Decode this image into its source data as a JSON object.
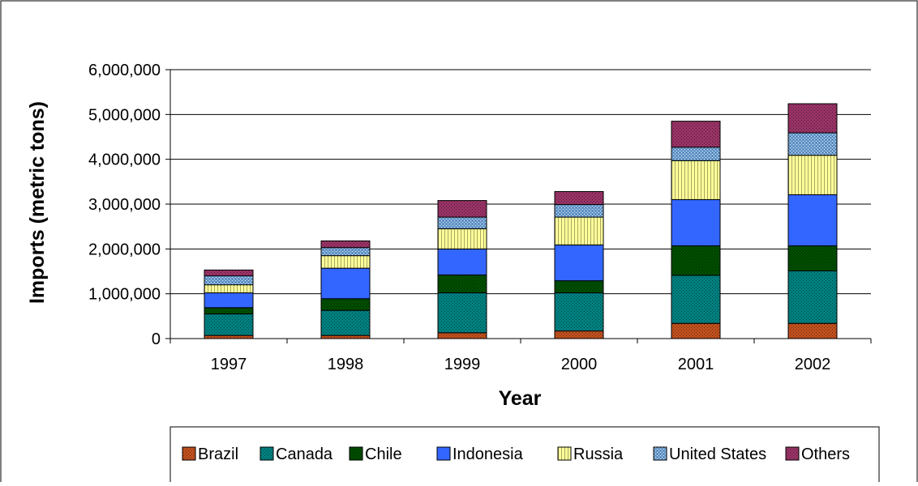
{
  "chart_data": {
    "type": "bar",
    "stacked": true,
    "title": "",
    "xlabel": "Year",
    "ylabel": "Imports (metric tons)",
    "ylim": [
      0,
      6000000
    ],
    "yticks": [
      0,
      1000000,
      2000000,
      3000000,
      4000000,
      5000000,
      6000000
    ],
    "ytick_labels": [
      "0",
      "1,000,000",
      "2,000,000",
      "3,000,000",
      "4,000,000",
      "5,000,000",
      "6,000,000"
    ],
    "grid": true,
    "legend_position": "bottom",
    "categories": [
      "1997",
      "1998",
      "1999",
      "2000",
      "2001",
      "2002"
    ],
    "series": [
      {
        "name": "Brazil",
        "color": "#c0501e",
        "pattern": "dots",
        "values": [
          70000,
          70000,
          130000,
          170000,
          340000,
          340000
        ]
      },
      {
        "name": "Canada",
        "color": "#008080",
        "pattern": "dots",
        "values": [
          480000,
          560000,
          890000,
          850000,
          1070000,
          1170000
        ]
      },
      {
        "name": "Chile",
        "color": "#004d00",
        "pattern": "dots",
        "values": [
          140000,
          260000,
          400000,
          270000,
          660000,
          560000
        ]
      },
      {
        "name": "Indonesia",
        "color": "#3366ff",
        "pattern": "solid",
        "values": [
          330000,
          680000,
          580000,
          800000,
          1030000,
          1140000
        ]
      },
      {
        "name": "Russia",
        "color": "#ffff99",
        "pattern": "vlines",
        "values": [
          180000,
          280000,
          450000,
          620000,
          870000,
          880000
        ]
      },
      {
        "name": "United States",
        "color": "#6699cc",
        "pattern": "grid",
        "values": [
          200000,
          180000,
          260000,
          280000,
          300000,
          500000
        ]
      },
      {
        "name": "Others",
        "color": "#993366",
        "pattern": "dots",
        "values": [
          130000,
          150000,
          370000,
          290000,
          580000,
          650000
        ]
      }
    ]
  }
}
